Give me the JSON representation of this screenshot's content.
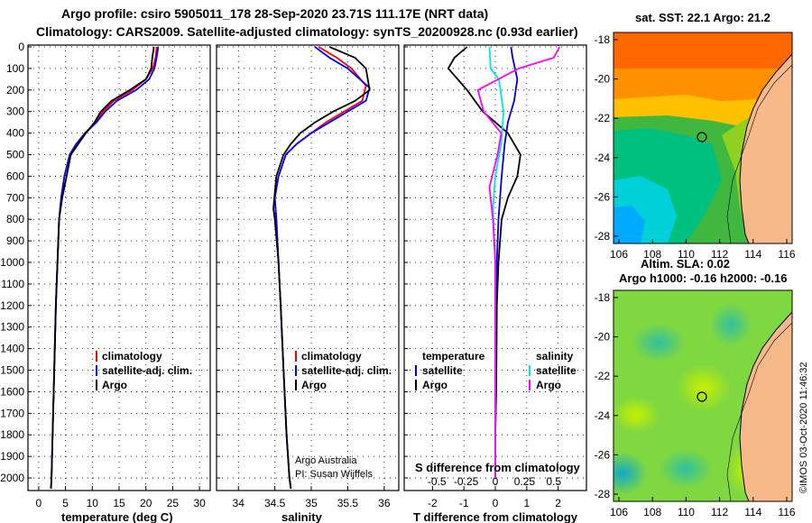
{
  "header": {
    "line1": "Argo profile: csiro 5905011_178 28-Sep-2020 23.71S 111.17E (NRT data)",
    "line2": "Climatology: CARS2009. Satellite-adjusted climatology: synTS_20200928.nc (0.93d earlier)"
  },
  "depth_ticks": [
    "0",
    "100",
    "200",
    "300",
    "400",
    "500",
    "600",
    "700",
    "800",
    "900",
    "1000",
    "1100",
    "1200",
    "1300",
    "1400",
    "1500",
    "1600",
    "1700",
    "1800",
    "1900",
    "2000"
  ],
  "colors": {
    "climatology": "#ff0000",
    "satellite": "#0000ff",
    "argo": "#000000",
    "sat_temp_diff": "#0000cc",
    "sat_sal_diff": "#00e5e5",
    "argo_sal_diff": "#ff00ff"
  },
  "chart_data": [
    {
      "type": "line",
      "panel": "temperature",
      "xlabel": "temperature (deg C)",
      "xticks": [
        "0",
        "5",
        "10",
        "15",
        "20",
        "25",
        "30"
      ],
      "xlim": [
        -2,
        32
      ],
      "ylim": [
        2050,
        0
      ],
      "legend": [
        "climatology",
        "satellite-adj. clim.",
        "Argo"
      ],
      "series": [
        {
          "name": "climatology",
          "x": [
            22.0,
            21.8,
            21.3,
            20.0,
            17.5,
            14.0,
            12.0,
            10.6,
            8.6,
            7.0,
            5.8,
            4.8,
            4.2,
            3.8,
            3.5,
            3.2,
            3.0,
            2.8,
            2.6,
            2.4,
            2.3
          ],
          "y": [
            0,
            50,
            100,
            150,
            200,
            250,
            300,
            350,
            400,
            450,
            500,
            600,
            700,
            800,
            1000,
            1200,
            1400,
            1600,
            1800,
            2000,
            2050
          ]
        },
        {
          "name": "satellite-adj. clim.",
          "x": [
            22.3,
            22.0,
            21.6,
            20.6,
            18.2,
            14.6,
            12.4,
            10.8,
            8.7,
            7.0,
            5.8,
            4.8,
            4.2,
            3.8,
            3.5,
            3.2,
            3.0,
            2.8,
            2.6,
            2.4,
            2.3
          ],
          "y": [
            0,
            50,
            100,
            150,
            200,
            250,
            300,
            350,
            400,
            450,
            500,
            600,
            700,
            800,
            1000,
            1200,
            1400,
            1600,
            1800,
            2000,
            2050
          ]
        },
        {
          "name": "Argo",
          "x": [
            21.5,
            21.2,
            21.0,
            20.0,
            17.0,
            13.6,
            11.6,
            10.4,
            8.8,
            7.4,
            6.0,
            5.2,
            4.4,
            3.8,
            3.5,
            3.2,
            3.0,
            2.8,
            2.6,
            2.4,
            2.3
          ],
          "y": [
            0,
            50,
            100,
            150,
            200,
            250,
            300,
            350,
            400,
            450,
            500,
            600,
            700,
            800,
            1000,
            1200,
            1400,
            1600,
            1800,
            2000,
            2050
          ]
        }
      ]
    },
    {
      "type": "line",
      "panel": "salinity",
      "xlabel": "salinity",
      "xticks": [
        "34",
        "34.5",
        "35",
        "35.5",
        "36"
      ],
      "xlim": [
        33.7,
        36.2
      ],
      "ylim": [
        2050,
        0
      ],
      "legend": [
        "climatology",
        "satellite-adj. clim.",
        "Argo"
      ],
      "series": [
        {
          "name": "climatology",
          "x": [
            35.1,
            35.35,
            35.55,
            35.75,
            35.7,
            35.45,
            35.2,
            35.0,
            34.8,
            34.65,
            34.55,
            34.5,
            34.52,
            34.55,
            34.58,
            34.62,
            34.66,
            34.7,
            34.72
          ],
          "y": [
            0,
            50,
            100,
            180,
            250,
            300,
            350,
            400,
            450,
            500,
            600,
            700,
            800,
            1000,
            1200,
            1500,
            1800,
            2000,
            2050
          ]
        },
        {
          "name": "satellite-adj. clim.",
          "x": [
            35.05,
            35.25,
            35.5,
            35.8,
            35.75,
            35.5,
            35.25,
            35.0,
            34.8,
            34.65,
            34.55,
            34.5,
            34.52,
            34.55,
            34.58,
            34.62,
            34.66,
            34.7,
            34.72
          ],
          "y": [
            0,
            50,
            100,
            190,
            250,
            300,
            350,
            400,
            450,
            500,
            600,
            700,
            800,
            1000,
            1200,
            1500,
            1800,
            2000,
            2050
          ]
        },
        {
          "name": "Argo",
          "x": [
            35.25,
            35.6,
            35.75,
            35.8,
            35.6,
            35.3,
            35.05,
            34.85,
            34.72,
            34.62,
            34.52,
            34.48,
            34.5,
            34.55,
            34.58,
            34.62,
            34.66,
            34.7,
            34.72
          ],
          "y": [
            0,
            50,
            100,
            200,
            250,
            300,
            350,
            400,
            450,
            500,
            600,
            750,
            800,
            1000,
            1200,
            1500,
            1800,
            2000,
            2050
          ]
        }
      ],
      "annotations": [
        "Argo Australia",
        "PI: Susan Wijffels"
      ]
    },
    {
      "type": "line",
      "panel": "difference",
      "xlabel": "T difference from climatology",
      "xticks": [
        "-2",
        "-1",
        "0",
        "1",
        "2"
      ],
      "xlim": [
        -2.9,
        2.9
      ],
      "top_axis_label": "S difference from climatology",
      "top_ticks": [
        "-0.5",
        "-0.25",
        "0",
        "0.25",
        "0.5"
      ],
      "top_tick_values": [
        -0.5,
        -0.25,
        0,
        0.25,
        0.5
      ],
      "ylim": [
        2050,
        0
      ],
      "legend_temperature": [
        "temperature",
        "satellite",
        "Argo"
      ],
      "legend_salinity": [
        "salinity",
        "satellite",
        "Argo"
      ],
      "series": [
        {
          "name": "T satellite",
          "x": [
            0.5,
            0.55,
            0.7,
            0.6,
            0.4,
            0.3,
            0.2,
            0.1,
            0.05,
            0.02,
            0.0,
            0.0
          ],
          "y": [
            0,
            50,
            150,
            250,
            350,
            450,
            600,
            800,
            1000,
            1400,
            1800,
            2000
          ]
        },
        {
          "name": "T Argo",
          "x": [
            -0.9,
            -1.3,
            -1.5,
            -0.9,
            -0.4,
            0.4,
            0.8,
            0.7,
            0.4,
            0.2,
            0.1,
            0.05,
            0.03,
            0.0,
            0.0
          ],
          "y": [
            0,
            50,
            100,
            200,
            300,
            400,
            500,
            600,
            700,
            800,
            1000,
            1200,
            1600,
            1800,
            2000
          ]
        },
        {
          "name": "S satellite",
          "x": [
            -0.05,
            -0.04,
            0.03,
            0.07,
            0.05,
            0.0,
            -0.02,
            0.0,
            0.0,
            0.0
          ],
          "y": [
            0,
            100,
            150,
            300,
            450,
            600,
            750,
            1000,
            1500,
            2000
          ]
        },
        {
          "name": "S Argo",
          "x": [
            0.55,
            0.5,
            0.2,
            -0.15,
            -0.1,
            0.05,
            0.02,
            -0.05,
            -0.02,
            0.0,
            0.0,
            0.0
          ],
          "y": [
            0,
            50,
            100,
            200,
            300,
            400,
            500,
            650,
            800,
            1000,
            1500,
            2000
          ]
        }
      ]
    }
  ],
  "maps": [
    {
      "title": "sat. SST: 22.1 Argo: 21.2",
      "yticks": [
        "-18",
        "-20",
        "-22",
        "-24",
        "-26",
        "-28"
      ],
      "xticks": [
        "106",
        "108",
        "110",
        "112",
        "114",
        "116"
      ],
      "colorscale": [
        "#00aaff",
        "#00d0d8",
        "#00c080",
        "#40b840",
        "#90d020",
        "#e0e000",
        "#ffc000",
        "#ff9000",
        "#ff6000"
      ]
    },
    {
      "title1": "Altim. SLA: 0.02",
      "title2": "Argo h1000: -0.16 h2000: -0.16",
      "yticks": [
        "-18",
        "-20",
        "-22",
        "-24",
        "-26",
        "-28"
      ],
      "xticks": [
        "106",
        "108",
        "110",
        "112",
        "114",
        "116"
      ],
      "colorscale": [
        "#10a8c8",
        "#30c0a0",
        "#50c860",
        "#80d840",
        "#a0e030",
        "#c8f000"
      ]
    }
  ],
  "credit": "©IMOS 03-Oct-2020 11:46:32"
}
